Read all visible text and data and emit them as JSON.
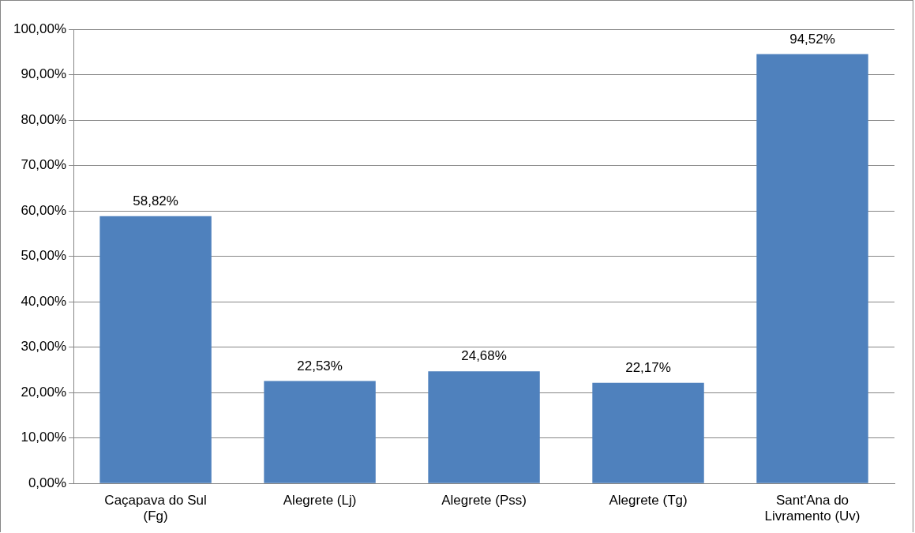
{
  "chart_data": {
    "type": "bar",
    "categories": [
      "Caçapava do Sul (Fg)",
      "Alegrete (Lj)",
      "Alegrete (Pss)",
      "Alegrete (Tg)",
      "Sant'Ana do Livramento (Uv)"
    ],
    "values": [
      58.82,
      22.53,
      24.68,
      22.17,
      94.52
    ],
    "value_labels": [
      "58,82%",
      "22,53%",
      "24,68%",
      "22,17%",
      "94,52%"
    ],
    "color": "#4f81bd",
    "ylim": [
      0,
      100
    ],
    "yticks": [
      {
        "value": 0,
        "label": "0,00%"
      },
      {
        "value": 10,
        "label": "10,00%"
      },
      {
        "value": 20,
        "label": "20,00%"
      },
      {
        "value": 30,
        "label": "30,00%"
      },
      {
        "value": 40,
        "label": "40,00%"
      },
      {
        "value": 50,
        "label": "50,00%"
      },
      {
        "value": 60,
        "label": "60,00%"
      },
      {
        "value": 70,
        "label": "70,00%"
      },
      {
        "value": 80,
        "label": "80,00%"
      },
      {
        "value": 90,
        "label": "90,00%"
      },
      {
        "value": 100,
        "label": "100,00%"
      }
    ],
    "grid": "y",
    "legend": false
  }
}
